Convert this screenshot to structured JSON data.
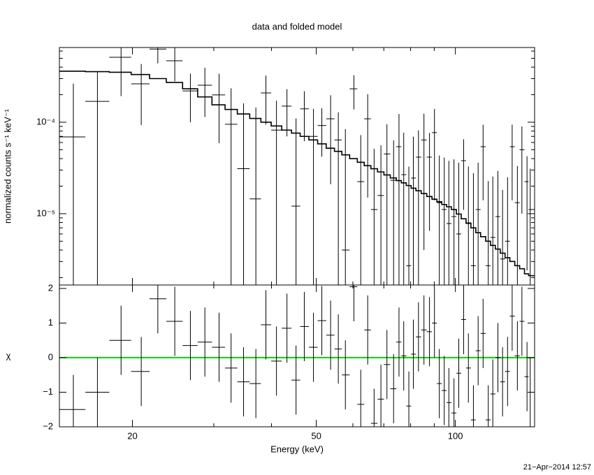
{
  "chart_data": [
    {
      "type": "spectrum",
      "title": "data and folded model",
      "ylabel": "normalized counts s⁻¹ keV⁻¹",
      "xlog": true,
      "ylog": true,
      "color": "#000000",
      "model_color": "#000000",
      "xlim": [
        13.9,
        148.4
      ],
      "ylim": [
        1.66e-06,
        0.000656
      ],
      "yticks": [
        {
          "value": 1e-05,
          "label": "10⁻⁵"
        },
        {
          "value": 0.0001,
          "label": "10⁻⁴"
        }
      ],
      "yminor": [
        2e-06,
        3e-06,
        4e-06,
        5e-06,
        6e-06,
        7e-06,
        8e-06,
        9e-06,
        2e-05,
        3e-05,
        4e-05,
        5e-05,
        6e-05,
        7e-05,
        8e-05,
        9e-05,
        0.0002,
        0.0003,
        0.0004,
        0.0005,
        0.0006
      ],
      "x": [
        14.9,
        16.8,
        18.9,
        20.9,
        22.7,
        24.7,
        26.7,
        28.7,
        30.8,
        32.7,
        34.8,
        37.0,
        38.9,
        41.0,
        43.2,
        45.2,
        47.1,
        49.3,
        51.4,
        53.7,
        55.8,
        57.8,
        60.3,
        62.4,
        64.6,
        66.7,
        69.0,
        71.1,
        73.5,
        75.5,
        77.3,
        79.3,
        81.1,
        83.2,
        85.5,
        87.9,
        90.1,
        92.3,
        94.6,
        96.8,
        99.3,
        101.7,
        104.2,
        106.7,
        109.4,
        112.0,
        114.8,
        117.8,
        120.5,
        123.6,
        126.5,
        129.7,
        132.7,
        136.2,
        139.3,
        142.9,
        145.2
      ],
      "values": [
        6.9e-05,
        0.000169,
        0.000513,
        0.000263,
        0.00063,
        0.00047,
        0.00022,
        0.000254,
        0.000199,
        9.5e-05,
        3.1e-05,
        1.45e-05,
        0.000209,
        8.2e-05,
        0.00015,
        1.21e-05,
        0.00014,
        7e-05,
        9.2e-05,
        0.000109,
        6.4e-05,
        4e-06,
        0.000232,
        2.24e-05,
        0.000109,
        1.11e-05,
        1.58e-05,
        4.5e-05,
        2.32e-05,
        5.4e-05,
        2.67e-05,
        2.7e-06,
        2.45e-05,
        4.15e-05,
        6.4e-05,
        4.15e-05,
        7.7e-05,
        1.32e-05,
        1.11e-05,
        7.8e-06,
        9.3e-06,
        6e-06,
        3.8e-05,
        7.8e-06,
        2.7e-06,
        1.11e-05,
        5.4e-05,
        2.7e-06,
        5.5e-06,
        9.3e-06,
        3.2e-06,
        5e-06,
        5.4e-05,
        1.32e-05,
        5e-05,
        2.24e-05,
        1.11e-05
      ],
      "errors": [
        0.000195,
        0.00019,
        0.00032,
        0.00017,
        0.00019,
        0.00019,
        0.00012,
        0.00014,
        0.00014,
        0.00014,
        0.00013,
        0.00013,
        0.000115,
        9e-05,
        8e-05,
        9.8e-05,
        7.8e-05,
        7e-05,
        5e-05,
        8.8e-05,
        6.4e-05,
        8e-05,
        9.4e-05,
        5e-05,
        9.4e-05,
        4e-05,
        4e-05,
        5e-05,
        4e-05,
        6.9e-05,
        5e-05,
        3e-05,
        4.5e-05,
        4e-05,
        6e-05,
        3.5e-05,
        6.3e-05,
        3e-05,
        3e-05,
        3e-05,
        3e-05,
        3e-05,
        2.7e-05,
        2.5e-05,
        2.5e-05,
        2.5e-05,
        4e-05,
        2e-05,
        2e-05,
        2e-05,
        1.5e-05,
        2e-05,
        4e-05,
        2e-05,
        4e-05,
        2e-05,
        2e-05
      ],
      "model": [
        0.000361,
        0.000357,
        0.000352,
        0.000332,
        0.0003,
        0.000272,
        0.000232,
        0.000189,
        0.000155,
        0.000138,
        0.000123,
        0.00011,
        0.0001,
        9.1e-05,
        8.2e-05,
        7.6e-05,
        7e-05,
        6.4e-05,
        5.8e-05,
        5.2e-05,
        4.8e-05,
        4.4e-05,
        4e-05,
        3.65e-05,
        3.35e-05,
        3.1e-05,
        2.86e-05,
        2.65e-05,
        2.46e-05,
        2.3e-05,
        2.17e-05,
        2.03e-05,
        1.9e-05,
        1.78e-05,
        1.66e-05,
        1.54e-05,
        1.44e-05,
        1.35e-05,
        1.26e-05,
        1.19e-05,
        1.11e-05,
        9.9e-06,
        8.8e-06,
        7.9e-06,
        7e-06,
        6.2e-06,
        5.6e-06,
        5e-06,
        4.5e-06,
        4.1e-06,
        3.7e-06,
        3.3e-06,
        3e-06,
        2.7e-06,
        2.5e-06,
        2.2e-06,
        2.1e-06
      ]
    },
    {
      "type": "residuals",
      "xlabel": "Energy (keV)",
      "ylabel": "χ",
      "color": "#000000",
      "xlim": [
        13.9,
        148.4
      ],
      "xlog": true,
      "xticks": [
        20,
        50,
        100
      ],
      "xminor": [
        30,
        40,
        60,
        70,
        80,
        90
      ],
      "ylim": [
        -2,
        2.1
      ],
      "yticks": [
        {
          "value": -2,
          "label": "−2"
        },
        {
          "value": -1,
          "label": "−1"
        },
        0,
        1,
        2
      ],
      "reference_line": 0,
      "reference_color": "#00dd00",
      "values": [
        -1.5,
        -1.0,
        0.5,
        -0.4,
        1.7,
        1.05,
        0.35,
        0.45,
        0.3,
        -0.3,
        -0.7,
        -0.75,
        0.95,
        -0.1,
        0.85,
        -0.65,
        0.9,
        0.3,
        1.07,
        0.65,
        0.25,
        -0.5,
        2.05,
        -1.35,
        0.8,
        -1.9,
        -1.2,
        -0.2,
        -0.9,
        0.45,
        0.05,
        -1.4,
        0.1,
        0.6,
        0.8,
        0.75,
        1.0,
        -0.75,
        -0.95,
        -1.3,
        -1.6,
        -0.45,
        1.1,
        -0.3,
        -1.8,
        0.2,
        0.7,
        -1.8,
        -1.05,
        0.0,
        -0.7,
        -0.4,
        1.2,
        0.05,
        1.05,
        -0.55,
        -1.0
      ],
      "errors": [
        1,
        1,
        1,
        1,
        1,
        1,
        1,
        1,
        1,
        1,
        1,
        1,
        1,
        1,
        1,
        1,
        1,
        1,
        1,
        1,
        1,
        1,
        1,
        1,
        1,
        1,
        1,
        1,
        1,
        1,
        1,
        1,
        1,
        1,
        1,
        1,
        1,
        1,
        1,
        1,
        1,
        1,
        1,
        1,
        1,
        1,
        1,
        1,
        1,
        1,
        1,
        1,
        1,
        1,
        1,
        1,
        1
      ]
    }
  ],
  "timestamp": "21−Apr−2014 12:57"
}
